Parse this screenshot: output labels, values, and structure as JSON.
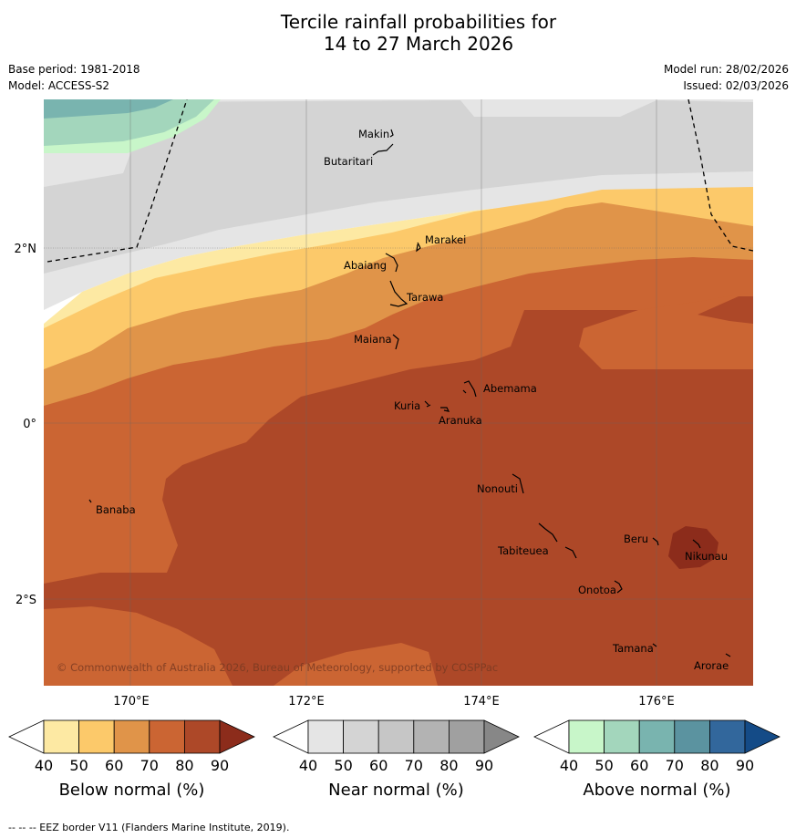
{
  "title": {
    "line1": "Tercile rainfall probabilities for",
    "line2": "14 to 27 March 2026"
  },
  "meta": {
    "base_period": "Base period: 1981-2018",
    "model": "Model: ACCESS-S2",
    "model_run": "Model run: 28/02/2026",
    "issued": "Issued: 02/03/2026"
  },
  "map": {
    "lat_labels": [
      "2°N",
      "0°",
      "2°S"
    ],
    "lon_labels": [
      "170°E",
      "172°E",
      "174°E",
      "176°E"
    ],
    "islands": [
      "Makin",
      "Butaritari",
      "Marakei",
      "Abaiang",
      "Tarawa",
      "Maiana",
      "Abemama",
      "Kuria",
      "Aranuka",
      "Nonouti",
      "Banaba",
      "Tabiteuea",
      "Beru",
      "Nikunau",
      "Onotoa",
      "Tamana",
      "Arorae"
    ],
    "copyright": "© Commonwealth of Australia 2026, Bureau of Meteorology, supported by COSPPac",
    "colors": {
      "below_40_50": "#fde9a3",
      "below_50_60": "#fcc96a",
      "below_60_70": "#e09449",
      "below_70_80": "#cb6533",
      "below_80_90": "#ad4828",
      "below_90": "#8c2c1b",
      "near_40_50": "#e5e5e5",
      "near_50_60": "#d4d4d4",
      "above_40_50": "#c8f6c9",
      "above_50_60": "#a3d6bc",
      "above_60_70": "#79b4af"
    }
  },
  "colorbars": [
    {
      "title": "Below normal (%)",
      "ticks": [
        "40",
        "50",
        "60",
        "70",
        "80",
        "90"
      ],
      "colors": [
        "#ffffff",
        "#fde9a3",
        "#fcc96a",
        "#e09449",
        "#cb6533",
        "#ad4828",
        "#8c2c1b"
      ]
    },
    {
      "title": "Near normal (%)",
      "ticks": [
        "40",
        "50",
        "60",
        "70",
        "80",
        "90"
      ],
      "colors": [
        "#ffffff",
        "#e5e5e5",
        "#d4d4d4",
        "#c6c6c6",
        "#b3b3b3",
        "#a0a0a0",
        "#878787"
      ]
    },
    {
      "title": "Above normal (%)",
      "ticks": [
        "40",
        "50",
        "60",
        "70",
        "80",
        "90"
      ],
      "colors": [
        "#ffffff",
        "#c8f6c9",
        "#a3d6bc",
        "#79b4af",
        "#5b93a0",
        "#32679c",
        "#144b87"
      ]
    }
  ],
  "footnote": "--  --  -- EEZ border V11 (Flanders Marine Institute, 2019)."
}
